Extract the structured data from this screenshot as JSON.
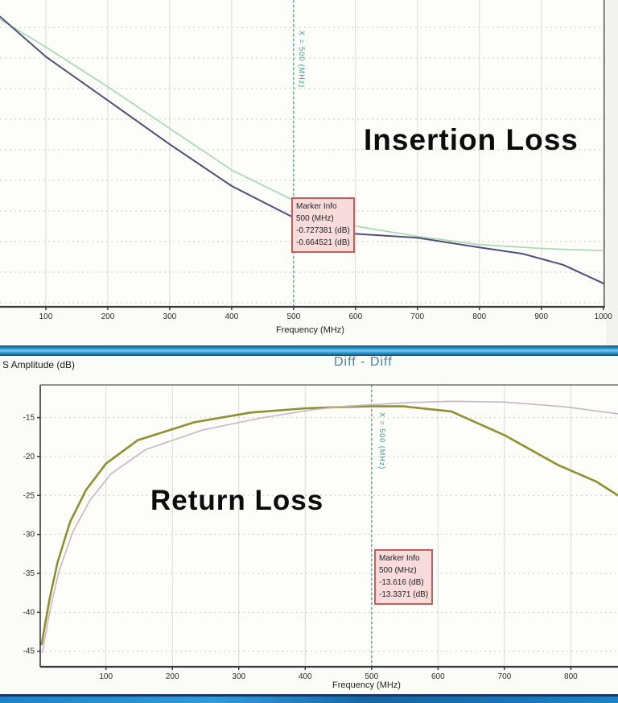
{
  "banner_mid": {
    "name": "teal-divider-band"
  },
  "banner_bottom": {
    "name": "teal-footer-band"
  },
  "bottom_header": {
    "ylabel": "S Amplitude (dB)",
    "title": "Diff - Diff"
  },
  "chart_data": [
    {
      "type": "line",
      "overlay_label": "Insertion Loss",
      "xlabel": "Frequency (MHz)",
      "xlim": [
        26,
        1003
      ],
      "ylim": [
        -1.05,
        0.06
      ],
      "x_ticks": [
        100,
        200,
        300,
        400,
        500,
        600,
        700,
        800,
        900,
        1000
      ],
      "y_ticks": [],
      "grid": "on",
      "legend": "none",
      "marker": {
        "x": 500,
        "vline_label": "X = 500 (MHz)",
        "box": {
          "title": "Marker Info",
          "line1": "500 (MHz)",
          "line2": "-0.727381 (dB)",
          "line3": "-0.664521 (dB)"
        }
      },
      "series": [
        {
          "name": "trace-green",
          "color": "#a6d6ae",
          "width": 1.6,
          "x": [
            26,
            100,
            200,
            300,
            400,
            500,
            600,
            700,
            800,
            910,
            1000
          ],
          "y": [
            -0.01,
            -0.11,
            -0.254,
            -0.405,
            -0.555,
            -0.665,
            -0.758,
            -0.795,
            -0.825,
            -0.84,
            -0.847
          ]
        },
        {
          "name": "trace-blue",
          "color": "#4e4e7c",
          "width": 2,
          "x": [
            26,
            100,
            200,
            300,
            400,
            500,
            600,
            700,
            800,
            870,
            935,
            1000
          ],
          "y": [
            0.0,
            -0.145,
            -0.303,
            -0.462,
            -0.613,
            -0.727,
            -0.786,
            -0.8,
            -0.835,
            -0.858,
            -0.898,
            -0.965
          ]
        }
      ]
    },
    {
      "type": "line",
      "overlay_label": "Return Loss",
      "title": "Diff - Diff",
      "ylabel": "S Amplitude (dB)",
      "xlabel": "Frequency (MHz)",
      "xlim": [
        1,
        871
      ],
      "ylim": [
        -47.0,
        -10.8
      ],
      "x_ticks": [
        100,
        200,
        300,
        400,
        500,
        600,
        700,
        800
      ],
      "y_ticks": [
        -15,
        -20,
        -25,
        -30,
        -35,
        -40,
        -45
      ],
      "grid": "on",
      "legend": "none",
      "marker": {
        "x": 500,
        "vline_label": "X = 500 (MHz)",
        "box": {
          "title": "Marker Info",
          "line1": "500 (MHz)",
          "line2": "-13.616 (dB)",
          "line3": "-13.3371 (dB)"
        }
      },
      "series": [
        {
          "name": "trace-olive",
          "color": "#8e9030",
          "width": 2.6,
          "x": [
            3,
            15,
            27,
            46,
            70,
            100,
            148,
            233,
            318,
            402,
            460,
            500,
            547,
            620,
            701,
            781,
            838,
            871
          ],
          "y": [
            -44.1,
            -38.3,
            -33.6,
            -28.4,
            -24.3,
            -20.9,
            -17.9,
            -15.6,
            -14.35,
            -13.8,
            -13.62,
            -13.55,
            -13.55,
            -14.2,
            -17.3,
            -21.1,
            -23.2,
            -25.0
          ]
        },
        {
          "name": "trace-pink",
          "color": "#c9b4c4",
          "width": 1.6,
          "x": [
            4,
            16,
            29,
            50,
            76,
            108,
            160,
            245,
            330,
            410,
            460,
            500,
            560,
            620,
            700,
            790,
            871
          ],
          "y": [
            -45.2,
            -39.6,
            -34.8,
            -29.7,
            -25.6,
            -22.2,
            -19.1,
            -16.6,
            -15.1,
            -14.0,
            -13.55,
            -13.34,
            -13.05,
            -12.9,
            -13.0,
            -13.6,
            -14.5
          ]
        }
      ]
    }
  ]
}
